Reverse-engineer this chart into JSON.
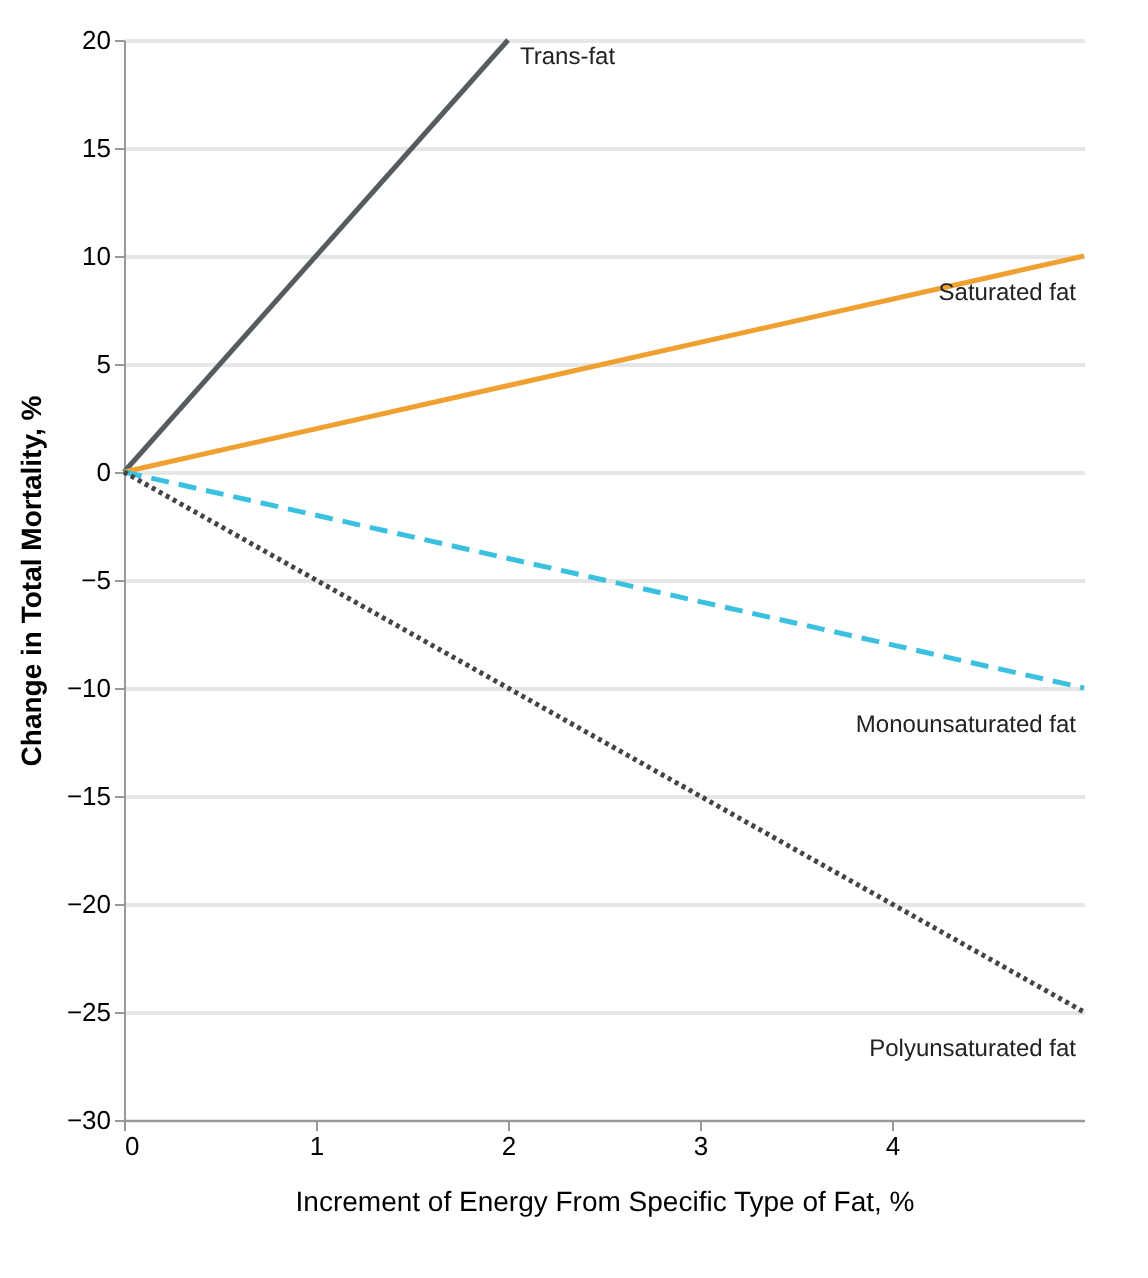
{
  "chart_data": {
    "type": "line",
    "xlabel": "Increment of Energy From Specific Type of Fat, %",
    "ylabel": "Change in Total Mortality, %",
    "xlim": [
      0,
      5
    ],
    "xticks": [
      0,
      1,
      2,
      3,
      4
    ],
    "ylim": [
      -30,
      20
    ],
    "yticks": [
      -30,
      -25,
      -20,
      -15,
      -10,
      -5,
      0,
      5,
      10,
      15,
      20
    ],
    "grid": "y",
    "marker": "none",
    "series": [
      {
        "name": "Trans-fat",
        "color": "#555b5e",
        "x": [
          0,
          2
        ],
        "values": [
          0,
          20
        ],
        "line_style": "solid"
      },
      {
        "name": "Saturated fat",
        "color": "#f0a030",
        "x": [
          0,
          5
        ],
        "values": [
          0,
          10
        ],
        "line_style": "solid"
      },
      {
        "name": "Monounsaturated fat",
        "color": "#3cc0e0",
        "x": [
          0,
          5
        ],
        "values": [
          0,
          -10
        ],
        "line_style": "dashed"
      },
      {
        "name": "Polyunsaturated fat",
        "color": "#444444",
        "x": [
          0,
          5
        ],
        "values": [
          0,
          -25
        ],
        "line_style": "dotted"
      }
    ]
  }
}
